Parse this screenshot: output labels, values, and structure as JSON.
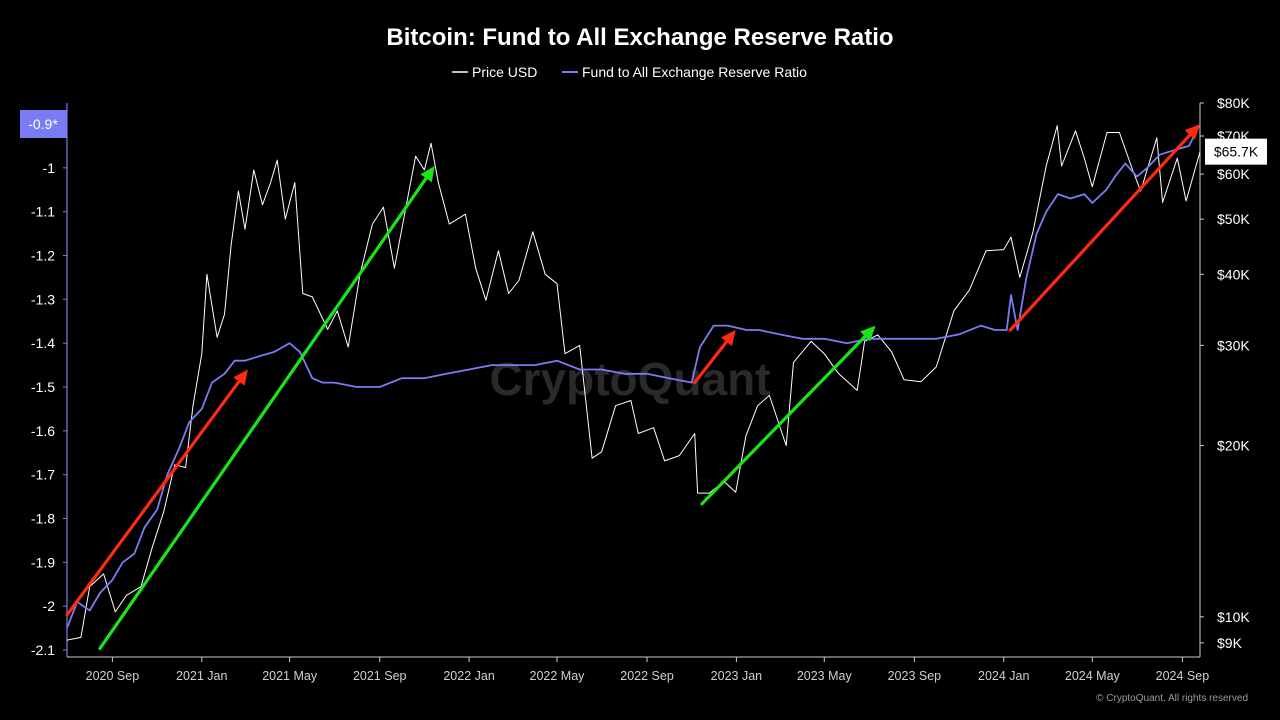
{
  "chart_data": {
    "type": "line",
    "title": "Bitcoin: Fund to All Exchange Reserve Ratio",
    "legend": {
      "position": "top-center"
    },
    "watermark": "CryptoQuant",
    "copyright": "© CryptoQuant. All rights reserved",
    "x": {
      "type": "date",
      "range": [
        "2020-07-01",
        "2024-09-25"
      ],
      "ticks": [
        {
          "date": "2020-09-01",
          "label": "2020 Sep"
        },
        {
          "date": "2021-01-01",
          "label": "2021 Jan"
        },
        {
          "date": "2021-05-01",
          "label": "2021 May"
        },
        {
          "date": "2021-09-01",
          "label": "2021 Sep"
        },
        {
          "date": "2022-01-01",
          "label": "2022 Jan"
        },
        {
          "date": "2022-05-01",
          "label": "2022 May"
        },
        {
          "date": "2022-09-01",
          "label": "2022 Sep"
        },
        {
          "date": "2023-01-01",
          "label": "2023 Jan"
        },
        {
          "date": "2023-05-01",
          "label": "2023 May"
        },
        {
          "date": "2023-09-01",
          "label": "2023 Sep"
        },
        {
          "date": "2024-01-01",
          "label": "2024 Jan"
        },
        {
          "date": "2024-05-01",
          "label": "2024 May"
        },
        {
          "date": "2024-09-01",
          "label": "2024 Sep"
        }
      ]
    },
    "y_left": {
      "range": [
        -2.1,
        -0.9
      ],
      "ticks": [
        -1,
        -1.1,
        -1.2,
        -1.3,
        -1.4,
        -1.5,
        -1.6,
        -1.7,
        -1.8,
        -1.9,
        -2,
        -2.1
      ],
      "tick_labels": [
        "-1",
        "-1.1",
        "-1.2",
        "-1.3",
        "-1.4",
        "-1.5",
        "-1.6",
        "-1.7",
        "-1.8",
        "-1.9",
        "-2",
        "-2.1"
      ],
      "current_value_label": "-0.9*",
      "current_value": -0.9,
      "current_label_color": "#7b7cf5"
    },
    "y_right": {
      "scale": "log",
      "range": [
        8500,
        80000
      ],
      "ticks": [
        9000,
        10000,
        20000,
        30000,
        40000,
        50000,
        60000,
        70000,
        80000
      ],
      "tick_labels": [
        "$9K",
        "$10K",
        "$20K",
        "$30K",
        "$40K",
        "$50K",
        "$60K",
        "$70K",
        "$80K"
      ],
      "current_value_label": "$65.7K",
      "current_value": 65700
    },
    "series": [
      {
        "name": "Price USD",
        "axis": "right",
        "color": "#ffffff",
        "points": [
          [
            "2020-07-01",
            9100
          ],
          [
            "2020-07-20",
            9200
          ],
          [
            "2020-08-01",
            11300
          ],
          [
            "2020-08-20",
            11900
          ],
          [
            "2020-09-05",
            10200
          ],
          [
            "2020-09-20",
            10900
          ],
          [
            "2020-10-10",
            11300
          ],
          [
            "2020-10-25",
            13200
          ],
          [
            "2020-11-10",
            15300
          ],
          [
            "2020-11-25",
            18500
          ],
          [
            "2020-12-10",
            18300
          ],
          [
            "2020-12-20",
            23500
          ],
          [
            "2021-01-01",
            29000
          ],
          [
            "2021-01-08",
            40000
          ],
          [
            "2021-01-22",
            31000
          ],
          [
            "2021-02-01",
            34000
          ],
          [
            "2021-02-10",
            45000
          ],
          [
            "2021-02-20",
            56000
          ],
          [
            "2021-03-01",
            48000
          ],
          [
            "2021-03-13",
            61000
          ],
          [
            "2021-03-25",
            53000
          ],
          [
            "2021-04-05",
            58000
          ],
          [
            "2021-04-14",
            63500
          ],
          [
            "2021-04-25",
            50000
          ],
          [
            "2021-05-08",
            58000
          ],
          [
            "2021-05-19",
            37000
          ],
          [
            "2021-06-01",
            36500
          ],
          [
            "2021-06-22",
            32000
          ],
          [
            "2021-07-05",
            34500
          ],
          [
            "2021-07-20",
            29800
          ],
          [
            "2021-08-05",
            40000
          ],
          [
            "2021-08-22",
            49000
          ],
          [
            "2021-09-06",
            52500
          ],
          [
            "2021-09-21",
            41000
          ],
          [
            "2021-10-05",
            51000
          ],
          [
            "2021-10-20",
            64500
          ],
          [
            "2021-11-01",
            61000
          ],
          [
            "2021-11-10",
            68000
          ],
          [
            "2021-11-20",
            58000
          ],
          [
            "2021-12-05",
            49000
          ],
          [
            "2021-12-27",
            51000
          ],
          [
            "2022-01-10",
            41000
          ],
          [
            "2022-01-24",
            36000
          ],
          [
            "2022-02-10",
            44000
          ],
          [
            "2022-02-24",
            37000
          ],
          [
            "2022-03-10",
            39000
          ],
          [
            "2022-03-29",
            47500
          ],
          [
            "2022-04-15",
            40000
          ],
          [
            "2022-05-01",
            38500
          ],
          [
            "2022-05-12",
            29000
          ],
          [
            "2022-06-01",
            30000
          ],
          [
            "2022-06-18",
            19000
          ],
          [
            "2022-07-01",
            19500
          ],
          [
            "2022-07-20",
            23500
          ],
          [
            "2022-08-10",
            24000
          ],
          [
            "2022-08-20",
            21000
          ],
          [
            "2022-09-10",
            21500
          ],
          [
            "2022-09-25",
            18800
          ],
          [
            "2022-10-15",
            19200
          ],
          [
            "2022-11-05",
            21000
          ],
          [
            "2022-11-09",
            16500
          ],
          [
            "2022-11-25",
            16500
          ],
          [
            "2022-12-15",
            17300
          ],
          [
            "2022-12-31",
            16550
          ],
          [
            "2023-01-14",
            20800
          ],
          [
            "2023-01-30",
            23500
          ],
          [
            "2023-02-15",
            24500
          ],
          [
            "2023-03-10",
            20000
          ],
          [
            "2023-03-20",
            28000
          ],
          [
            "2023-04-13",
            30500
          ],
          [
            "2023-05-01",
            29000
          ],
          [
            "2023-05-20",
            26800
          ],
          [
            "2023-06-15",
            25000
          ],
          [
            "2023-06-25",
            30500
          ],
          [
            "2023-07-13",
            31300
          ],
          [
            "2023-08-01",
            29200
          ],
          [
            "2023-08-18",
            26100
          ],
          [
            "2023-09-10",
            25900
          ],
          [
            "2023-10-01",
            27500
          ],
          [
            "2023-10-25",
            34500
          ],
          [
            "2023-11-15",
            37500
          ],
          [
            "2023-12-08",
            44000
          ],
          [
            "2024-01-01",
            44200
          ],
          [
            "2024-01-11",
            46500
          ],
          [
            "2024-01-23",
            39500
          ],
          [
            "2024-02-10",
            47500
          ],
          [
            "2024-02-28",
            62000
          ],
          [
            "2024-03-14",
            73000
          ],
          [
            "2024-03-20",
            62000
          ],
          [
            "2024-04-08",
            71500
          ],
          [
            "2024-04-20",
            64000
          ],
          [
            "2024-05-01",
            57000
          ],
          [
            "2024-05-21",
            71000
          ],
          [
            "2024-06-07",
            71000
          ],
          [
            "2024-06-25",
            61000
          ],
          [
            "2024-07-06",
            56000
          ],
          [
            "2024-07-28",
            69500
          ],
          [
            "2024-08-05",
            53500
          ],
          [
            "2024-08-25",
            64000
          ],
          [
            "2024-09-06",
            53800
          ],
          [
            "2024-09-25",
            65700
          ]
        ]
      },
      {
        "name": "Fund to All Exchange Reserve Ratio",
        "axis": "left",
        "color": "#7b7cf5",
        "points": [
          [
            "2020-07-01",
            -2.05
          ],
          [
            "2020-07-15",
            -1.99
          ],
          [
            "2020-08-01",
            -2.01
          ],
          [
            "2020-08-15",
            -1.97
          ],
          [
            "2020-09-01",
            -1.94
          ],
          [
            "2020-09-15",
            -1.9
          ],
          [
            "2020-10-01",
            -1.88
          ],
          [
            "2020-10-15",
            -1.82
          ],
          [
            "2020-11-01",
            -1.78
          ],
          [
            "2020-11-15",
            -1.7
          ],
          [
            "2020-12-01",
            -1.64
          ],
          [
            "2020-12-15",
            -1.58
          ],
          [
            "2021-01-01",
            -1.55
          ],
          [
            "2021-01-15",
            -1.49
          ],
          [
            "2021-02-01",
            -1.47
          ],
          [
            "2021-02-15",
            -1.44
          ],
          [
            "2021-03-01",
            -1.44
          ],
          [
            "2021-03-20",
            -1.43
          ],
          [
            "2021-04-10",
            -1.42
          ],
          [
            "2021-05-01",
            -1.4
          ],
          [
            "2021-05-15",
            -1.42
          ],
          [
            "2021-06-01",
            -1.48
          ],
          [
            "2021-06-15",
            -1.49
          ],
          [
            "2021-07-01",
            -1.49
          ],
          [
            "2021-08-01",
            -1.5
          ],
          [
            "2021-09-01",
            -1.5
          ],
          [
            "2021-10-01",
            -1.48
          ],
          [
            "2021-11-01",
            -1.48
          ],
          [
            "2021-12-01",
            -1.47
          ],
          [
            "2022-01-01",
            -1.46
          ],
          [
            "2022-02-01",
            -1.45
          ],
          [
            "2022-03-01",
            -1.45
          ],
          [
            "2022-04-01",
            -1.45
          ],
          [
            "2022-05-01",
            -1.44
          ],
          [
            "2022-06-01",
            -1.46
          ],
          [
            "2022-07-01",
            -1.46
          ],
          [
            "2022-08-01",
            -1.47
          ],
          [
            "2022-09-01",
            -1.47
          ],
          [
            "2022-10-01",
            -1.48
          ],
          [
            "2022-11-01",
            -1.49
          ],
          [
            "2022-11-12",
            -1.41
          ],
          [
            "2022-12-01",
            -1.36
          ],
          [
            "2022-12-20",
            -1.36
          ],
          [
            "2023-01-15",
            -1.37
          ],
          [
            "2023-02-01",
            -1.37
          ],
          [
            "2023-03-01",
            -1.38
          ],
          [
            "2023-04-01",
            -1.39
          ],
          [
            "2023-05-01",
            -1.39
          ],
          [
            "2023-06-01",
            -1.4
          ],
          [
            "2023-07-01",
            -1.39
          ],
          [
            "2023-08-01",
            -1.39
          ],
          [
            "2023-09-01",
            -1.39
          ],
          [
            "2023-10-01",
            -1.39
          ],
          [
            "2023-11-01",
            -1.38
          ],
          [
            "2023-12-01",
            -1.36
          ],
          [
            "2023-12-20",
            -1.37
          ],
          [
            "2024-01-05",
            -1.37
          ],
          [
            "2024-01-11",
            -1.29
          ],
          [
            "2024-01-20",
            -1.37
          ],
          [
            "2024-02-01",
            -1.25
          ],
          [
            "2024-02-15",
            -1.15
          ],
          [
            "2024-02-28",
            -1.1
          ],
          [
            "2024-03-15",
            -1.06
          ],
          [
            "2024-04-01",
            -1.07
          ],
          [
            "2024-04-20",
            -1.06
          ],
          [
            "2024-05-01",
            -1.08
          ],
          [
            "2024-05-20",
            -1.05
          ],
          [
            "2024-06-01",
            -1.02
          ],
          [
            "2024-06-15",
            -0.99
          ],
          [
            "2024-07-01",
            -1.02
          ],
          [
            "2024-07-15",
            -1.0
          ],
          [
            "2024-08-01",
            -0.97
          ],
          [
            "2024-08-20",
            -0.96
          ],
          [
            "2024-09-10",
            -0.95
          ],
          [
            "2024-09-25",
            -0.9
          ]
        ]
      }
    ],
    "annotations": [
      {
        "type": "arrow",
        "color": "#ff2a12",
        "axis": "left",
        "from": [
          "2020-07-01",
          -2.02
        ],
        "to": [
          "2021-03-05",
          -1.46
        ]
      },
      {
        "type": "arrow",
        "color": "#19e619",
        "axis": "right",
        "from": [
          "2020-08-15",
          8800
        ],
        "to": [
          "2021-11-15",
          62000
        ]
      },
      {
        "type": "arrow",
        "color": "#ff2a12",
        "axis": "left",
        "from": [
          "2022-11-05",
          -1.49
        ],
        "to": [
          "2022-12-31",
          -1.37
        ]
      },
      {
        "type": "arrow",
        "color": "#19e619",
        "axis": "right",
        "from": [
          "2022-11-15",
          15800
        ],
        "to": [
          "2023-07-10",
          32500
        ]
      },
      {
        "type": "arrow",
        "color": "#ff2a12",
        "axis": "left",
        "from": [
          "2024-01-10",
          -1.37
        ],
        "to": [
          "2024-09-25",
          -0.9
        ]
      }
    ]
  }
}
